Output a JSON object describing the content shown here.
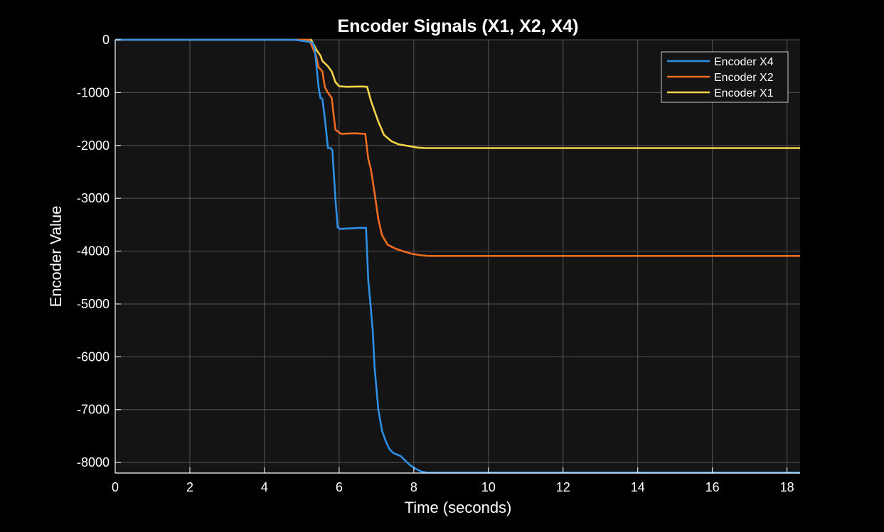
{
  "chart_data": {
    "type": "line",
    "title": "Encoder Signals (X1, X2, X4)",
    "xlabel": "Time (seconds)",
    "ylabel": "Encoder Value",
    "xlim": [
      0,
      18.35
    ],
    "ylim": [
      -8200,
      0
    ],
    "xticks": [
      0,
      2,
      4,
      6,
      8,
      10,
      12,
      14,
      16,
      18
    ],
    "yticks": [
      0,
      -1000,
      -2000,
      -3000,
      -4000,
      -5000,
      -6000,
      -7000,
      -8000
    ],
    "grid": true,
    "legend_position": "top-right",
    "colors": {
      "background": "#000000",
      "plot_area": "#141414",
      "grid": "#555555",
      "axis": "#ffffff"
    },
    "series": [
      {
        "name": "Encoder X4",
        "color": "#2d8fe6",
        "x": [
          0,
          4.8,
          5.2,
          5.3,
          5.35,
          5.45,
          5.5,
          5.55,
          5.62,
          5.7,
          5.78,
          5.82,
          5.9,
          5.96,
          6.02,
          6.3,
          6.55,
          6.72,
          6.78,
          6.82,
          6.9,
          6.95,
          7.05,
          7.15,
          7.25,
          7.35,
          7.45,
          7.55,
          7.65,
          7.75,
          7.9,
          8.05,
          8.2,
          8.35,
          18.35
        ],
        "values": [
          0,
          0,
          -40,
          -60,
          -200,
          -900,
          -1100,
          -1120,
          -1500,
          -2050,
          -2050,
          -2100,
          -3000,
          -3550,
          -3580,
          -3570,
          -3560,
          -3560,
          -4550,
          -4850,
          -5500,
          -6200,
          -7000,
          -7400,
          -7600,
          -7750,
          -7820,
          -7850,
          -7880,
          -7950,
          -8050,
          -8120,
          -8170,
          -8190,
          -8190
        ]
      },
      {
        "name": "Encoder X2",
        "color": "#ef6c1f",
        "x": [
          0,
          5.2,
          5.38,
          5.45,
          5.55,
          5.62,
          5.7,
          5.8,
          5.9,
          6.05,
          6.4,
          6.7,
          6.78,
          6.85,
          6.95,
          7.05,
          7.15,
          7.3,
          7.5,
          7.7,
          7.95,
          8.2,
          8.4,
          18.35
        ],
        "values": [
          0,
          0,
          -300,
          -520,
          -600,
          -900,
          -1000,
          -1100,
          -1700,
          -1780,
          -1770,
          -1780,
          -2250,
          -2450,
          -2900,
          -3400,
          -3700,
          -3880,
          -3950,
          -4000,
          -4050,
          -4080,
          -4090,
          -4090
        ]
      },
      {
        "name": "Encoder X1",
        "color": "#f5d547",
        "x": [
          0,
          5.25,
          5.4,
          5.5,
          5.55,
          5.7,
          5.8,
          5.9,
          6.0,
          6.2,
          6.6,
          6.75,
          6.85,
          6.95,
          7.05,
          7.2,
          7.4,
          7.6,
          7.85,
          8.1,
          8.3,
          18.35
        ],
        "values": [
          0,
          0,
          -200,
          -300,
          -400,
          -500,
          -600,
          -800,
          -880,
          -890,
          -885,
          -890,
          -1150,
          -1350,
          -1550,
          -1800,
          -1920,
          -1980,
          -2010,
          -2040,
          -2050,
          -2050
        ]
      }
    ]
  }
}
